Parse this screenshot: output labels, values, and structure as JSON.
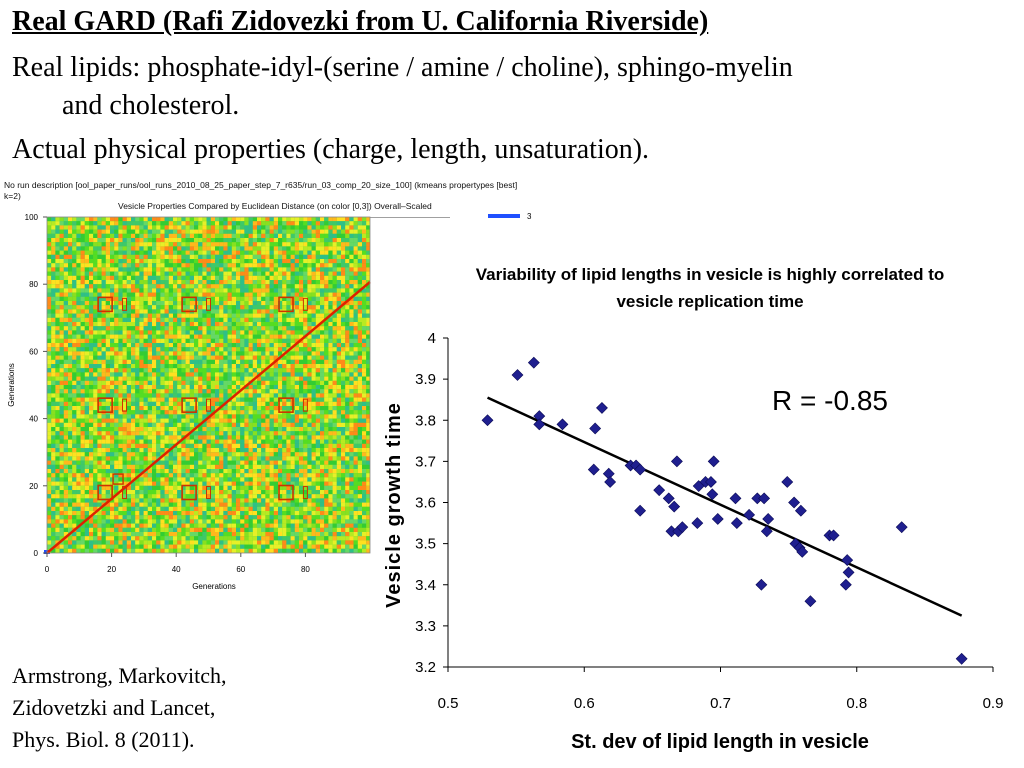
{
  "slide": {
    "title": "Real GARD (Rafi Zidovezki from U. California Riverside)",
    "line1": "Real lipids: phosphate-idyl-(serine / amine / choline), sphingo-myelin",
    "line2": "and cholesterol.",
    "line3": "Actual physical properties (charge, length, unsaturation).",
    "citation": [
      "Armstrong, Markovitch,",
      "Zidovetzki and Lancet,",
      "Phys. Biol. 8 (2011)."
    ]
  },
  "heatmap": {
    "run_description": "No run description [ool_paper_runs/ool_runs_2010_08_25_paper_step_7_r635/run_03_comp_20_size_100] (kmeans propertypes [best] k=2)",
    "subtitle": "Vesicle Properties Compared by Euclidean Distance (on color [0,3]) Overall–Scaled",
    "xlabel": "Generations",
    "ylabel": "Generations",
    "ticks": [
      "0",
      "20",
      "40",
      "60",
      "80",
      "100"
    ],
    "legend_value": "3",
    "colors": {
      "diagonal": "#dd2200",
      "box": "#cc3300",
      "low": "#2050ff"
    }
  },
  "chart_data": {
    "type": "scatter",
    "title": "Variability of lipid lengths in vesicle is highly correlated to vesicle replication time",
    "title_lines": [
      "Variability of lipid lengths in vesicle is highly correlated to",
      "vesicle replication time"
    ],
    "xlabel": "St. dev of lipid length in vesicle",
    "ylabel": "Vesicle growth time",
    "xlim": [
      0.5,
      0.9
    ],
    "ylim": [
      3.2,
      4.0
    ],
    "xticks": [
      "0.5",
      "0.6",
      "0.7",
      "0.8",
      "0.9"
    ],
    "yticks": [
      "3.2",
      "3.3",
      "3.4",
      "3.5",
      "3.6",
      "3.7",
      "3.8",
      "3.9",
      "4"
    ],
    "annotation": "R = -0.85",
    "grid": false,
    "marker_color": "#1f1f8f",
    "trendline": {
      "x": [
        0.529,
        0.877
      ],
      "y": [
        3.855,
        3.325
      ]
    },
    "points": [
      [
        0.529,
        3.8
      ],
      [
        0.551,
        3.91
      ],
      [
        0.563,
        3.94
      ],
      [
        0.567,
        3.81
      ],
      [
        0.567,
        3.79
      ],
      [
        0.584,
        3.79
      ],
      [
        0.608,
        3.78
      ],
      [
        0.613,
        3.83
      ],
      [
        0.607,
        3.68
      ],
      [
        0.618,
        3.67
      ],
      [
        0.619,
        3.65
      ],
      [
        0.634,
        3.69
      ],
      [
        0.638,
        3.69
      ],
      [
        0.641,
        3.68
      ],
      [
        0.641,
        3.58
      ],
      [
        0.655,
        3.63
      ],
      [
        0.662,
        3.61
      ],
      [
        0.664,
        3.53
      ],
      [
        0.666,
        3.59
      ],
      [
        0.669,
        3.53
      ],
      [
        0.668,
        3.7
      ],
      [
        0.672,
        3.54
      ],
      [
        0.683,
        3.55
      ],
      [
        0.684,
        3.64
      ],
      [
        0.689,
        3.65
      ],
      [
        0.693,
        3.65
      ],
      [
        0.694,
        3.62
      ],
      [
        0.695,
        3.7
      ],
      [
        0.698,
        3.56
      ],
      [
        0.711,
        3.61
      ],
      [
        0.712,
        3.55
      ],
      [
        0.721,
        3.57
      ],
      [
        0.727,
        3.61
      ],
      [
        0.73,
        3.4
      ],
      [
        0.732,
        3.61
      ],
      [
        0.734,
        3.53
      ],
      [
        0.735,
        3.56
      ],
      [
        0.749,
        3.65
      ],
      [
        0.754,
        3.6
      ],
      [
        0.755,
        3.5
      ],
      [
        0.758,
        3.49
      ],
      [
        0.759,
        3.58
      ],
      [
        0.76,
        3.48
      ],
      [
        0.766,
        3.36
      ],
      [
        0.78,
        3.52
      ],
      [
        0.783,
        3.52
      ],
      [
        0.792,
        3.4
      ],
      [
        0.793,
        3.46
      ],
      [
        0.794,
        3.43
      ],
      [
        0.833,
        3.54
      ],
      [
        0.877,
        3.22
      ]
    ]
  }
}
